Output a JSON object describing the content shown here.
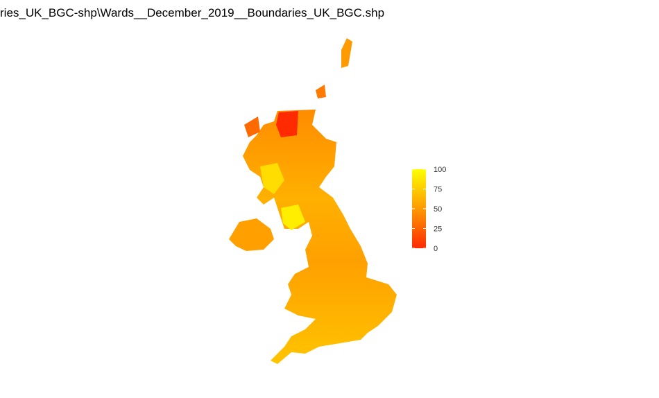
{
  "title": "ries_UK_BGC-shp\\Wards__December_2019__Boundaries_UK_BGC.shp",
  "legend": {
    "range": [
      0,
      100
    ],
    "ticks": [
      0,
      25,
      50,
      75,
      100
    ],
    "colors": [
      "#ff2a00",
      "#ff9a00",
      "#ffff00"
    ]
  }
}
